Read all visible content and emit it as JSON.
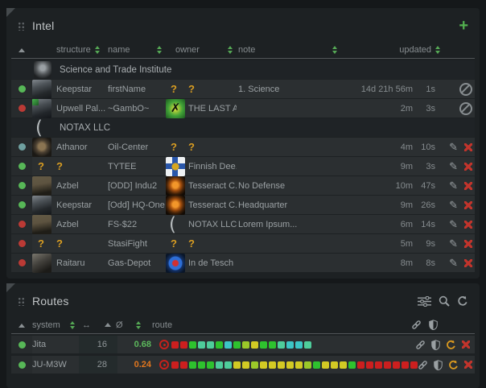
{
  "intel": {
    "title": "Intel",
    "add_label": "+",
    "headers": {
      "structure": "structure",
      "name": "name",
      "owner": "owner",
      "note": "note",
      "updated": "updated"
    },
    "rows": [
      {
        "type": "group",
        "icon": "sti",
        "label": "Science and Trade Institute"
      },
      {
        "type": "data",
        "status": "#57b757",
        "sicon": "keepstar",
        "structure": "Keepstar",
        "name": "firstName",
        "oicon": "question",
        "owner": "?",
        "note": "1. Science",
        "upd": "14d 21h 56m",
        "sec": "1s",
        "actions": "ban"
      },
      {
        "type": "data",
        "status": "#bb3a35",
        "sicon": "upwell",
        "structure": "Upwell Pal...",
        "name": "~GambO~",
        "oicon": "lastalliance",
        "owner": "THE LAST A...",
        "note": "",
        "upd": "2m",
        "sec": "3s",
        "actions": "ban"
      },
      {
        "type": "group",
        "icon": "crescent",
        "label": "NOTAX LLC"
      },
      {
        "type": "data",
        "status": "#6fa0a0",
        "sicon": "athanor",
        "structure": "Athanor",
        "name": "Oil-Center",
        "oicon": "question",
        "owner": "?",
        "note": "",
        "upd": "4m",
        "sec": "10s",
        "actions": "edit"
      },
      {
        "type": "data",
        "status": "#57b757",
        "sicon": "question",
        "structure": "?",
        "name": "TYTEE",
        "oicon": "finnish",
        "owner": "Finnish Dee...",
        "note": "",
        "upd": "9m",
        "sec": "3s",
        "actions": "edit"
      },
      {
        "type": "data",
        "status": "#57b757",
        "sicon": "azbel",
        "structure": "Azbel",
        "name": "[ODD] Indu2",
        "oicon": "tesseract",
        "owner": "Tesseract C...",
        "note": "No Defense",
        "upd": "10m",
        "sec": "47s",
        "actions": "edit"
      },
      {
        "type": "data",
        "status": "#57b757",
        "sicon": "keepstar",
        "structure": "Keepstar",
        "name": "[Odd] HQ-One",
        "oicon": "tesseract",
        "owner": "Tesseract C...",
        "note": "Headquarter",
        "upd": "9m",
        "sec": "26s",
        "actions": "edit"
      },
      {
        "type": "data",
        "status": "#bb3a35",
        "sicon": "azbel",
        "structure": "Azbel",
        "name": "FS-$22",
        "oicon": "crescent",
        "owner": "NOTAX LLC",
        "note": "Lorem Ipsum...",
        "upd": "6m",
        "sec": "14s",
        "actions": "edit"
      },
      {
        "type": "data",
        "status": "#bb3a35",
        "sicon": "question",
        "structure": "?",
        "name": "StasiFight",
        "oicon": "question",
        "owner": "?",
        "note": "",
        "upd": "5m",
        "sec": "9s",
        "actions": "edit"
      },
      {
        "type": "data",
        "status": "#bb3a35",
        "sicon": "raitaru",
        "structure": "Raitaru",
        "name": "Gas-Depot",
        "oicon": "tesch",
        "owner": "In de Tesch",
        "note": "",
        "upd": "8m",
        "sec": "8s",
        "actions": "edit"
      }
    ]
  },
  "routes": {
    "title": "Routes",
    "toolbar": [
      "sliders",
      "search",
      "refresh"
    ],
    "headers": {
      "system": "system",
      "jumps": "↔",
      "sec": "Ø",
      "route": "route"
    },
    "security_palette": {
      "red": "#cc1f1f",
      "green": "#2ec22e",
      "teal": "#4ecd9b",
      "cyan": "#3cc6c6",
      "lime": "#9bc929",
      "yellow": "#d3ca24"
    },
    "rows": [
      {
        "status": "#57b757",
        "system": "Jita",
        "jumps": "16",
        "sec": "0.68",
        "sec_color": "#5cb85c",
        "route": [
          "red",
          "red",
          "green",
          "teal",
          "teal",
          "green",
          "cyan",
          "green",
          "lime",
          "yellow",
          "green",
          "green",
          "teal",
          "cyan",
          "cyan",
          "teal"
        ]
      },
      {
        "status": "#57b757",
        "system": "JU-M3W",
        "jumps": "28",
        "sec": "0.24",
        "sec_color": "#e0761e",
        "route": [
          "red",
          "red",
          "green",
          "green",
          "green",
          "teal",
          "teal",
          "yellow",
          "yellow",
          "lime",
          "yellow",
          "yellow",
          "yellow",
          "yellow",
          "yellow",
          "lime",
          "green",
          "yellow",
          "yellow",
          "yellow",
          "green",
          "red",
          "red",
          "red",
          "red",
          "red",
          "red",
          "red"
        ]
      }
    ]
  }
}
